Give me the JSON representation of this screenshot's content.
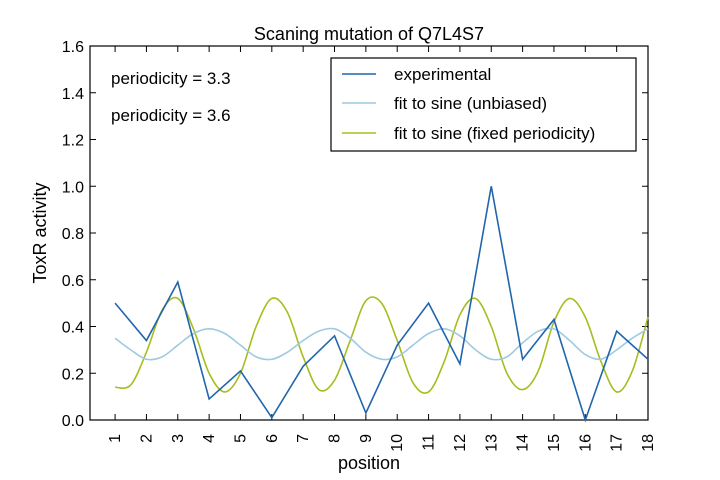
{
  "chart_data": {
    "type": "line",
    "title": "Scaning mutation of Q7L4S7",
    "xlabel": "position",
    "ylabel": "ToxR activity",
    "xlim": [
      0.2,
      18
    ],
    "ylim": [
      0,
      1.6
    ],
    "x_ticks": [
      1,
      2,
      3,
      4,
      5,
      6,
      7,
      8,
      9,
      10,
      11,
      12,
      13,
      14,
      15,
      16,
      17,
      18
    ],
    "y_ticks": [
      0.0,
      0.2,
      0.4,
      0.6,
      0.8,
      1.0,
      1.2,
      1.4,
      1.6
    ],
    "grid": false,
    "legend_position": "top-right",
    "series": [
      {
        "name": "experimental",
        "color": "#2166ac",
        "x": [
          1,
          2,
          3,
          4,
          5,
          6,
          7,
          8,
          9,
          10,
          11,
          12,
          13,
          14,
          15,
          16,
          17,
          18
        ],
        "y": [
          0.5,
          0.34,
          0.59,
          0.09,
          0.21,
          0.01,
          0.23,
          0.36,
          0.03,
          0.32,
          0.5,
          0.24,
          1.0,
          0.26,
          0.43,
          0.0,
          0.38,
          0.26
        ]
      },
      {
        "name": "fit to sine (unbiased)",
        "color": "#9ecae1",
        "x": [
          1,
          1.5,
          2,
          2.5,
          3,
          3.5,
          4,
          4.5,
          5,
          5.5,
          6,
          6.5,
          7,
          7.5,
          8,
          8.5,
          9,
          9.5,
          10,
          10.5,
          11,
          11.5,
          12,
          12.5,
          13,
          13.5,
          14,
          14.5,
          15,
          15.5,
          16,
          16.5,
          17,
          17.5,
          18
        ],
        "y": [
          0.35,
          0.3,
          0.26,
          0.27,
          0.32,
          0.37,
          0.39,
          0.37,
          0.32,
          0.27,
          0.26,
          0.29,
          0.34,
          0.38,
          0.39,
          0.35,
          0.29,
          0.26,
          0.27,
          0.32,
          0.37,
          0.39,
          0.36,
          0.3,
          0.26,
          0.27,
          0.33,
          0.38,
          0.39,
          0.34,
          0.28,
          0.26,
          0.3,
          0.35,
          0.39
        ]
      },
      {
        "name": "fit to sine (fixed periodicity)",
        "color": "#a6bd1f",
        "x": [
          1,
          1.5,
          2,
          2.5,
          3,
          3.5,
          4,
          4.5,
          5,
          5.5,
          6,
          6.5,
          7,
          7.5,
          8,
          8.5,
          9,
          9.5,
          10,
          10.5,
          11,
          11.5,
          12,
          12.5,
          13,
          13.5,
          14,
          14.5,
          15,
          15.5,
          16,
          16.5,
          17,
          17.5,
          18
        ],
        "y": [
          0.14,
          0.15,
          0.29,
          0.47,
          0.52,
          0.39,
          0.2,
          0.12,
          0.2,
          0.4,
          0.52,
          0.46,
          0.27,
          0.13,
          0.17,
          0.34,
          0.51,
          0.5,
          0.34,
          0.16,
          0.12,
          0.25,
          0.45,
          0.52,
          0.4,
          0.2,
          0.13,
          0.21,
          0.42,
          0.52,
          0.44,
          0.25,
          0.12,
          0.21,
          0.44
        ]
      }
    ],
    "annotations": [
      {
        "text": "periodicity = 3.3",
        "color": "#9ecae1"
      },
      {
        "text": "periodicity = 3.6",
        "color": "#a6bd1f"
      }
    ]
  }
}
